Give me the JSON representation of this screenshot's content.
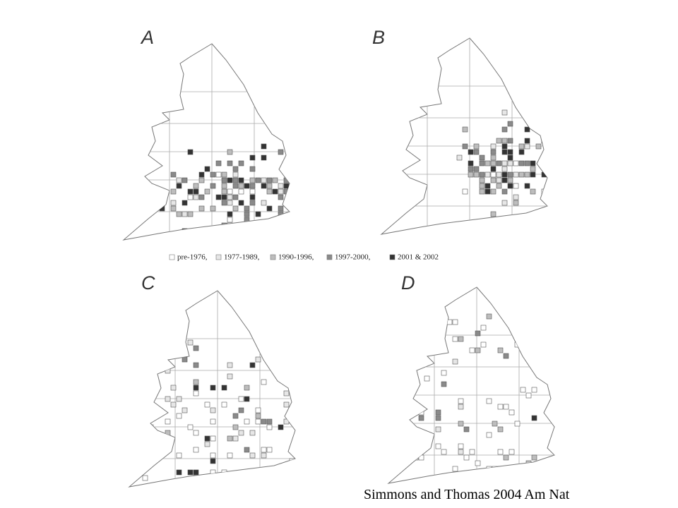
{
  "panels": [
    {
      "label": "A"
    },
    {
      "label": "B"
    },
    {
      "label": "C"
    },
    {
      "label": "D"
    }
  ],
  "legend": {
    "items": [
      {
        "label": "pre-1976,",
        "color": "#ffffff"
      },
      {
        "label": "1977-1989,",
        "color": "#e6e6e6"
      },
      {
        "label": "1990-1996,",
        "color": "#bdbdbd"
      },
      {
        "label": "1997-2000,",
        "color": "#8a8a8a"
      },
      {
        "label": "2001 & 2002",
        "color": "#333333"
      }
    ]
  },
  "citation": "Simmons and Thomas 2004 Am Nat"
}
